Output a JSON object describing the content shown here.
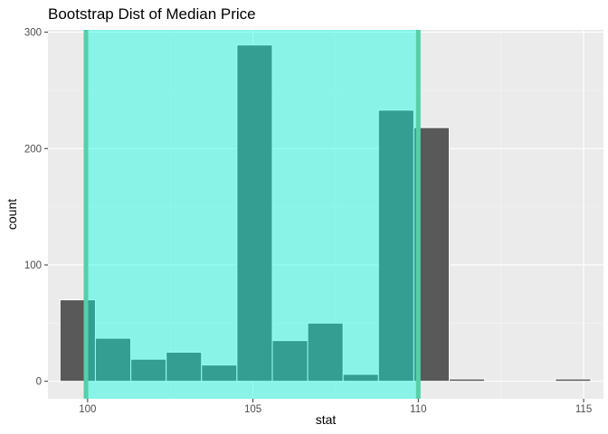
{
  "chart_data": {
    "type": "bar",
    "title": "Bootstrap Dist of Median Price",
    "xlabel": "stat",
    "ylabel": "count",
    "xlim": [
      98.8,
      115.6
    ],
    "ylim": [
      -15,
      302
    ],
    "x_ticks": [
      100,
      105,
      110,
      115
    ],
    "y_ticks": [
      0,
      100,
      200,
      300
    ],
    "grid": true,
    "bin_width": 1.07,
    "bins": [
      {
        "x": 99.7,
        "count": 70
      },
      {
        "x": 100.77,
        "count": 37
      },
      {
        "x": 101.84,
        "count": 19
      },
      {
        "x": 102.91,
        "count": 25
      },
      {
        "x": 103.98,
        "count": 14
      },
      {
        "x": 105.05,
        "count": 289
      },
      {
        "x": 106.12,
        "count": 35
      },
      {
        "x": 107.19,
        "count": 50
      },
      {
        "x": 108.26,
        "count": 6
      },
      {
        "x": 109.33,
        "count": 233
      },
      {
        "x": 110.4,
        "count": 218
      },
      {
        "x": 111.47,
        "count": 2
      },
      {
        "x": 112.54,
        "count": 0
      },
      {
        "x": 113.61,
        "count": 0
      },
      {
        "x": 114.68,
        "count": 2
      }
    ],
    "shaded_interval": {
      "lower": 99.95,
      "upper": 110.0
    },
    "colors": {
      "panel": "#ebebeb",
      "grid_major": "#ffffff",
      "bar_fill": "#595959",
      "bar_outline": "#ffffff",
      "interval_fill": "#00ffe0",
      "interval_fill_opacity": 0.42,
      "interval_line": "#56cfa8"
    }
  }
}
